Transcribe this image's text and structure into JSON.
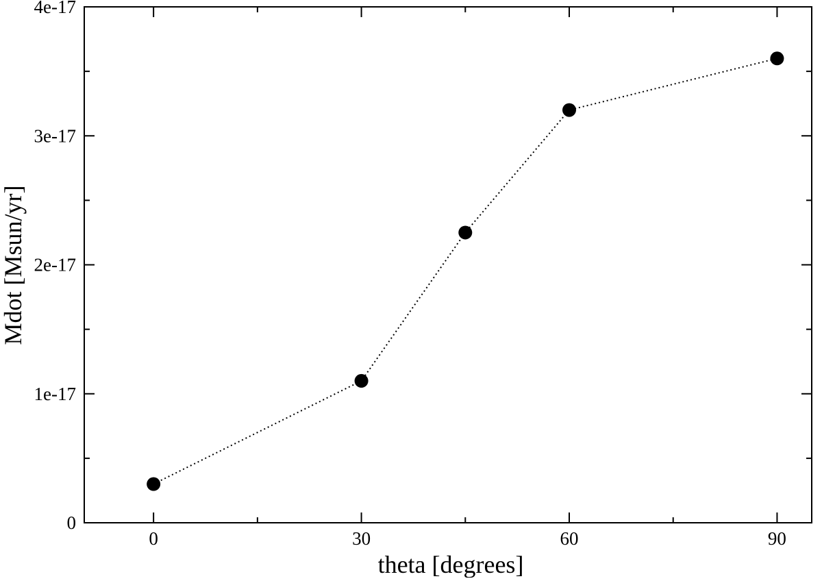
{
  "chart_data": {
    "type": "line",
    "title": "",
    "xlabel": "theta [degrees]",
    "ylabel": "Mdot [Msun/yr]",
    "xlim": [
      -10,
      95
    ],
    "ylim": [
      0,
      4e-17
    ],
    "x_ticks": [
      0,
      30,
      60,
      90
    ],
    "x_tick_labels": [
      "0",
      "30",
      "60",
      "90"
    ],
    "x_minor_ticks": [
      15,
      45,
      75
    ],
    "y_ticks": [
      0,
      1e-17,
      2e-17,
      3e-17,
      4e-17
    ],
    "y_tick_labels": [
      "0",
      "1e-17",
      "2e-17",
      "3e-17",
      "4e-17"
    ],
    "y_minor_ticks": [
      5e-18,
      1.5e-17,
      2.5e-17,
      3.5e-17
    ],
    "grid": false,
    "series": [
      {
        "x": [
          0,
          30,
          45,
          60,
          90
        ],
        "y": [
          3e-18,
          1.1e-17,
          2.25e-17,
          3.2e-17,
          3.6e-17
        ],
        "line_style": "dotted",
        "marker": "filled-circle",
        "color": "#000000"
      }
    ]
  }
}
